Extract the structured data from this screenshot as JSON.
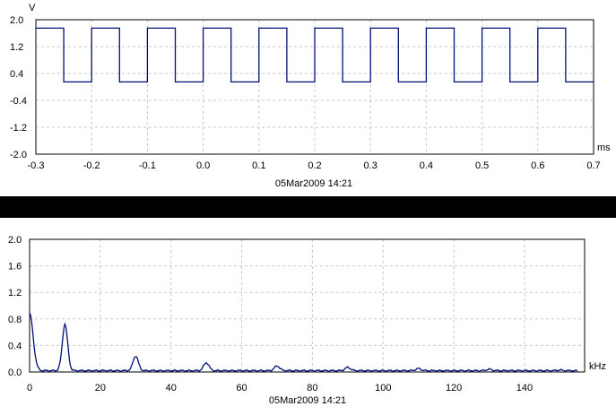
{
  "chart_data": [
    {
      "type": "line",
      "title": "",
      "ylabel": "V",
      "xlabel": "ms",
      "timestamp": "05Mar2009  14:21",
      "xlim": [
        -0.3,
        0.7
      ],
      "ylim": [
        -2.0,
        2.0
      ],
      "x_ticks": [
        "-0.3",
        "-0.2",
        "-0.1",
        "0.0",
        "0.1",
        "0.2",
        "0.3",
        "0.4",
        "0.5",
        "0.6",
        "0.7"
      ],
      "y_ticks": [
        "2.0",
        "1.2",
        "0.4",
        "-0.4",
        "-1.2",
        "-2.0"
      ],
      "grid": true,
      "series": [
        {
          "color": "#00107a",
          "waveform": "square",
          "period_ms": 0.1,
          "high_V": 1.75,
          "low_V": 0.15,
          "high_start_ms": -0.3,
          "high_duration_ms": 0.05,
          "rising_edges_ms": [
            -0.2,
            -0.1,
            0.0,
            0.1,
            0.2,
            0.3,
            0.4,
            0.5,
            0.6
          ],
          "falling_edges_ms": [
            -0.25,
            -0.15,
            -0.05,
            0.05,
            0.15,
            0.25,
            0.35,
            0.45,
            0.55,
            0.65
          ]
        }
      ]
    },
    {
      "type": "line",
      "title": "",
      "ylabel": "",
      "xlabel": "kHz",
      "timestamp": "05Mar2009  14:21",
      "xlim": [
        0,
        157
      ],
      "ylim": [
        0.0,
        2.0
      ],
      "x_ticks": [
        "0",
        "20",
        "40",
        "60",
        "80",
        "100",
        "120",
        "140"
      ],
      "y_ticks": [
        "2.0",
        "1.6",
        "1.2",
        "0.8",
        "0.4",
        "0.0"
      ],
      "grid": true,
      "series": [
        {
          "color": "#00107a",
          "noise_floor": 0.02,
          "peaks": [
            {
              "x": 0,
              "y": 0.88
            },
            {
              "x": 10,
              "y": 0.72
            },
            {
              "x": 30,
              "y": 0.24
            },
            {
              "x": 50,
              "y": 0.14
            },
            {
              "x": 70,
              "y": 0.09
            },
            {
              "x": 90,
              "y": 0.07
            },
            {
              "x": 110,
              "y": 0.05
            },
            {
              "x": 130,
              "y": 0.04
            },
            {
              "x": 150,
              "y": 0.03
            }
          ]
        }
      ]
    }
  ]
}
